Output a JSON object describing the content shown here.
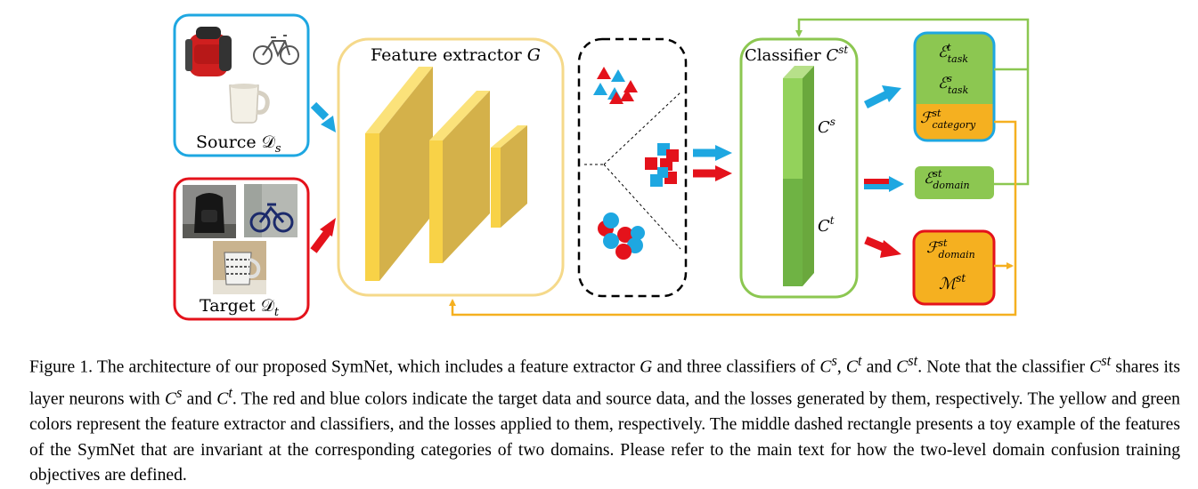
{
  "figure": {
    "source_label": "Source 𝒟",
    "source_sub": "s",
    "target_label": "Target 𝒟",
    "target_sub": "t",
    "extractor_label": "Feature extractor ",
    "extractor_var": "G",
    "classifier_label": "Classifier ",
    "classifier_var": "C",
    "classifier_sup": "st",
    "cs_var": "C",
    "cs_sup": "s",
    "ct_var": "C",
    "ct_sup": "t",
    "loss_task_t": {
      "sym": "ℰ",
      "sup": "t",
      "sub": "task"
    },
    "loss_task_s": {
      "sym": "ℰ",
      "sup": "s",
      "sub": "task"
    },
    "loss_category": {
      "sym": "ℱ",
      "sup": "st",
      "sub": "category"
    },
    "loss_domain_e": {
      "sym": "ℰ",
      "sup": "st",
      "sub": "domain"
    },
    "loss_domain_f": {
      "sym": "ℱ",
      "sup": "st",
      "sub": "domain"
    },
    "loss_m": {
      "sym": "ℳ",
      "sup": "st"
    }
  },
  "colors": {
    "source_blue": "#1ea7e1",
    "target_red": "#e4121b",
    "extractor_yellow": "#f5d98a",
    "classifier_green": "#8cc751",
    "loss_orange": "#f5b020"
  },
  "caption": {
    "figure_no": "Figure 1.",
    "seg1": " The architecture of our proposed SymNet, which includes a feature extractor ",
    "g": "G",
    "seg2": " and three classifiers of ",
    "c1": "C",
    "c1_sup": "s",
    "sep1": ", ",
    "c2": "C",
    "c2_sup": "t",
    "seg3": " and ",
    "c3": "C",
    "c3_sup": "st",
    "seg4": ". Note that the classifier ",
    "c4": "C",
    "c4_sup": "st",
    "seg5": " shares its layer neurons with ",
    "c5": "C",
    "c5_sup": "s",
    "seg6": " and ",
    "c6": "C",
    "c6_sup": "t",
    "seg7": ". The red and blue colors indicate the target data and source data, and the losses generated by them, respectively. The yellow and green colors represent the feature extractor and classifiers, and the losses applied to them, respectively. The middle dashed rectangle presents a toy example of the features of the SymNet that are invariant at the corresponding categories of two domains. Please refer to the main text for how the two-level domain confusion training objectives are defined."
  }
}
